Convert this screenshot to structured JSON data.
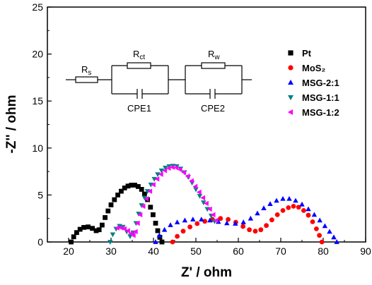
{
  "chart_data": {
    "type": "scatter",
    "xlabel": "Z' / ohm",
    "ylabel": "-Z'' / ohm",
    "xlim": [
      15,
      90
    ],
    "ylim": [
      0,
      25
    ],
    "xticks": [
      20,
      30,
      40,
      50,
      60,
      70,
      80,
      90
    ],
    "yticks": [
      0,
      5,
      10,
      15,
      20,
      25
    ],
    "xtick_labels": [
      "20",
      "30",
      "40",
      "50",
      "60",
      "70",
      "80",
      "90"
    ],
    "ytick_labels": [
      "0",
      "5",
      "10",
      "15",
      "20",
      "25"
    ],
    "legend_position": "top-right",
    "series": [
      {
        "name": "Pt",
        "marker": "square",
        "color": "#000000",
        "x": [
          20.6,
          21.2,
          21.9,
          22.7,
          23.6,
          24.6,
          25.6,
          26.5,
          27.2,
          27.9,
          28.6,
          29.3,
          30.0,
          30.8,
          31.6,
          32.4,
          33.2,
          34.0,
          34.8,
          35.6,
          36.4,
          37.2,
          37.9,
          38.6,
          39.3,
          39.9,
          40.5,
          41.0,
          41.5,
          42.0
        ],
        "y": [
          0.0,
          0.55,
          1.0,
          1.35,
          1.55,
          1.6,
          1.45,
          1.2,
          1.3,
          1.8,
          2.6,
          3.3,
          3.95,
          4.5,
          5.0,
          5.4,
          5.75,
          5.95,
          6.05,
          6.05,
          5.9,
          5.6,
          5.1,
          4.5,
          3.7,
          2.9,
          2.0,
          1.2,
          0.5,
          0.0
        ]
      },
      {
        "name": "MoS₂",
        "marker": "circle",
        "color": "#ff0000",
        "x": [
          44.5,
          45.6,
          47.0,
          48.6,
          50.3,
          52.1,
          53.9,
          55.8,
          57.6,
          59.4,
          61.1,
          62.6,
          64.0,
          65.3,
          66.6,
          67.9,
          69.2,
          70.5,
          71.8,
          73.0,
          74.2,
          75.4,
          76.5,
          77.5,
          78.4,
          79.1,
          79.7
        ],
        "y": [
          0.0,
          0.6,
          1.15,
          1.6,
          1.95,
          2.2,
          2.4,
          2.5,
          2.4,
          2.1,
          1.65,
          1.3,
          1.15,
          1.3,
          1.75,
          2.35,
          2.9,
          3.35,
          3.65,
          3.8,
          3.7,
          3.35,
          2.85,
          2.15,
          1.4,
          0.7,
          0.0
        ]
      },
      {
        "name": "MSG-2:1",
        "marker": "triangle-up",
        "color": "#0000ff",
        "x": [
          40.5,
          41.4,
          42.6,
          44.0,
          45.6,
          47.4,
          49.3,
          51.3,
          53.3,
          55.3,
          57.3,
          59.3,
          61.2,
          62.9,
          64.5,
          66.0,
          67.5,
          69.0,
          70.5,
          72.0,
          73.5,
          75.0,
          76.5,
          77.9,
          79.2,
          80.4,
          81.5,
          82.5,
          83.2
        ],
        "y": [
          0.0,
          0.7,
          1.3,
          1.8,
          2.1,
          2.3,
          2.4,
          2.4,
          2.3,
          2.15,
          2.0,
          1.95,
          2.1,
          2.5,
          3.05,
          3.6,
          4.05,
          4.4,
          4.6,
          4.6,
          4.4,
          4.0,
          3.5,
          2.9,
          2.3,
          1.7,
          1.1,
          0.5,
          0.0
        ]
      },
      {
        "name": "MSG-1:1",
        "marker": "triangle-down",
        "color": "#008080",
        "x": [
          29.8,
          30.4,
          31.2,
          32.0,
          32.8,
          33.7,
          34.5,
          35.2,
          35.9,
          36.5,
          37.2,
          37.9,
          38.6,
          39.4,
          40.2,
          41.0,
          41.9,
          42.8,
          43.7,
          44.6,
          45.5,
          46.4,
          47.3,
          48.2,
          49.1,
          50.0,
          50.9,
          51.8,
          52.7,
          53.6,
          54.4
        ],
        "y": [
          0.0,
          0.8,
          1.4,
          1.7,
          1.6,
          1.1,
          0.6,
          1.0,
          2.0,
          3.0,
          3.9,
          4.7,
          5.4,
          6.1,
          6.7,
          7.2,
          7.6,
          7.9,
          8.05,
          8.1,
          8.05,
          7.8,
          7.4,
          6.9,
          6.3,
          5.6,
          4.9,
          4.2,
          3.5,
          2.8,
          2.2
        ]
      },
      {
        "name": "MSG-1:2",
        "marker": "triangle-left",
        "color": "#ff00ff",
        "x": [
          31.5,
          32.4,
          33.2,
          34.0,
          34.7,
          35.3,
          35.8,
          36.3,
          36.9,
          37.6,
          38.4,
          39.2,
          40.0,
          40.9,
          41.8,
          42.7,
          43.6,
          44.5,
          45.4,
          46.3,
          47.2,
          48.1,
          49.0,
          49.9,
          50.8,
          51.7,
          52.5,
          53.3,
          54.1,
          54.8
        ],
        "y": [
          1.5,
          1.5,
          1.4,
          1.2,
          0.9,
          0.7,
          1.1,
          2.0,
          2.9,
          3.8,
          4.6,
          5.4,
          6.1,
          6.7,
          7.2,
          7.6,
          7.85,
          7.95,
          7.9,
          7.7,
          7.4,
          7.0,
          6.5,
          5.9,
          5.3,
          4.7,
          4.1,
          3.5,
          2.9,
          2.3
        ]
      }
    ]
  },
  "circuit": {
    "rs_main": "R",
    "rs_sub": "s",
    "rct_main": "R",
    "rct_sub": "ct",
    "rw_main": "R",
    "rw_sub": "w",
    "cpe1": "CPE1",
    "cpe2": "CPE2"
  }
}
